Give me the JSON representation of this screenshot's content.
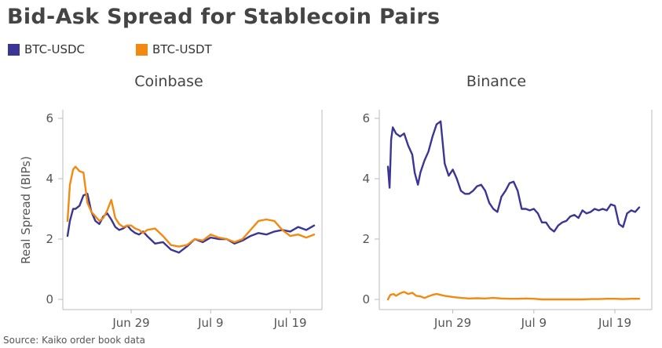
{
  "title": "Bid-Ask Spread for Stablecoin Pairs",
  "source": "Source: Kaiko order book data",
  "colors": {
    "usdc": "#3b3593",
    "usdt": "#f28a12",
    "axis": "#bbbbbb",
    "tick": "#555555"
  },
  "legend": [
    {
      "name": "BTC-USDC",
      "color": "#3b3593"
    },
    {
      "name": "BTC-USDT",
      "color": "#f28a12"
    }
  ],
  "chart_data": [
    {
      "type": "line",
      "title": "Coinbase",
      "ylabel": "Real Spread (BIPs)",
      "ylim": [
        0,
        6
      ],
      "yticks": [
        "0",
        "2",
        "4",
        "6"
      ],
      "xlim": [
        0,
        32
      ],
      "xticks": [
        {
          "x": 8,
          "label": "Jun 29"
        },
        {
          "x": 18,
          "label": "Jul 9"
        },
        {
          "x": 28,
          "label": "Jul 19"
        }
      ],
      "series": [
        {
          "name": "BTC-USDC",
          "color": "#3b3593",
          "x": [
            0,
            0.3,
            0.7,
            1,
            1.5,
            2,
            2.5,
            3,
            3.5,
            4,
            4.5,
            5,
            5.5,
            6,
            6.5,
            7,
            7.5,
            8,
            8.5,
            9,
            9.5,
            10,
            11,
            12,
            13,
            14,
            15,
            16,
            17,
            18,
            19,
            20,
            21,
            22,
            23,
            24,
            25,
            26,
            27,
            28,
            29,
            30,
            31
          ],
          "y": [
            2.1,
            2.6,
            3.0,
            3.0,
            3.1,
            3.45,
            3.5,
            2.9,
            2.6,
            2.5,
            2.75,
            2.85,
            2.65,
            2.4,
            2.3,
            2.35,
            2.45,
            2.3,
            2.2,
            2.15,
            2.25,
            2.1,
            1.85,
            1.9,
            1.65,
            1.55,
            1.75,
            2.0,
            1.9,
            2.05,
            2.0,
            2.0,
            1.85,
            1.95,
            2.1,
            2.2,
            2.15,
            2.25,
            2.3,
            2.25,
            2.4,
            2.3,
            2.45
          ]
        },
        {
          "name": "BTC-USDT",
          "color": "#f28a12",
          "x": [
            0,
            0.3,
            0.7,
            1,
            1.5,
            2,
            2.5,
            3,
            3.5,
            4,
            4.5,
            5,
            5.5,
            6,
            6.5,
            7,
            7.5,
            8,
            8.5,
            9,
            9.5,
            10,
            11,
            12,
            13,
            14,
            15,
            16,
            17,
            18,
            19,
            20,
            21,
            22,
            23,
            24,
            25,
            26,
            27,
            28,
            29,
            30,
            31
          ],
          "y": [
            2.6,
            3.8,
            4.3,
            4.4,
            4.25,
            4.2,
            3.2,
            2.9,
            2.75,
            2.6,
            2.7,
            2.95,
            3.3,
            2.7,
            2.5,
            2.4,
            2.45,
            2.45,
            2.35,
            2.3,
            2.2,
            2.3,
            2.35,
            2.1,
            1.8,
            1.75,
            1.8,
            2.0,
            1.95,
            2.15,
            2.05,
            2.0,
            1.9,
            2.0,
            2.3,
            2.6,
            2.65,
            2.6,
            2.3,
            2.1,
            2.15,
            2.05,
            2.15
          ]
        }
      ]
    },
    {
      "type": "line",
      "title": "Binance",
      "ylabel": "",
      "ylim": [
        0,
        6
      ],
      "yticks": [
        "0",
        "2",
        "4",
        "6"
      ],
      "xlim": [
        0,
        32
      ],
      "xticks": [
        {
          "x": 8,
          "label": "Jun 29"
        },
        {
          "x": 18,
          "label": "Jul 9"
        },
        {
          "x": 28,
          "label": "Jul 19"
        }
      ],
      "series": [
        {
          "name": "BTC-USDC",
          "color": "#3b3593",
          "x": [
            0,
            0.2,
            0.4,
            0.6,
            1,
            1.5,
            2,
            2.5,
            3,
            3.3,
            3.7,
            4,
            4.5,
            5,
            5.5,
            6,
            6.5,
            7,
            7.5,
            8,
            8.5,
            9,
            9.5,
            10,
            10.5,
            11,
            11.5,
            12,
            12.5,
            13,
            13.5,
            14,
            14.5,
            15,
            15.5,
            16,
            16.5,
            17,
            17.5,
            18,
            18.5,
            19,
            19.5,
            20,
            20.5,
            21,
            21.5,
            22,
            22.5,
            23,
            23.5,
            24,
            24.5,
            25,
            25.5,
            26,
            26.5,
            27,
            27.5,
            28,
            28.5,
            29,
            29.5,
            30,
            30.5,
            31
          ],
          "y": [
            4.4,
            3.7,
            5.3,
            5.7,
            5.5,
            5.4,
            5.5,
            5.1,
            4.8,
            4.2,
            3.8,
            4.2,
            4.6,
            4.9,
            5.4,
            5.8,
            5.9,
            4.5,
            4.1,
            4.3,
            4.0,
            3.6,
            3.5,
            3.5,
            3.6,
            3.75,
            3.8,
            3.6,
            3.2,
            3.0,
            2.9,
            3.4,
            3.6,
            3.85,
            3.9,
            3.6,
            3.0,
            3.0,
            2.95,
            3.0,
            2.85,
            2.55,
            2.55,
            2.35,
            2.25,
            2.45,
            2.55,
            2.6,
            2.75,
            2.8,
            2.7,
            2.95,
            2.85,
            2.9,
            3.0,
            2.95,
            3.0,
            2.95,
            3.15,
            3.1,
            2.5,
            2.4,
            2.85,
            2.95,
            2.9,
            3.05
          ]
        },
        {
          "name": "BTC-USDT",
          "color": "#f28a12",
          "x": [
            0,
            0.3,
            0.7,
            1,
            1.5,
            2,
            2.5,
            3,
            3.5,
            4,
            4.5,
            5,
            5.5,
            6,
            7,
            8,
            9,
            10,
            11,
            12,
            13,
            14,
            15,
            16,
            17,
            18,
            19,
            20,
            21,
            22,
            23,
            24,
            25,
            26,
            27,
            28,
            29,
            30,
            31
          ],
          "y": [
            0.0,
            0.15,
            0.18,
            0.12,
            0.2,
            0.25,
            0.18,
            0.22,
            0.12,
            0.1,
            0.05,
            0.1,
            0.15,
            0.18,
            0.12,
            0.08,
            0.05,
            0.03,
            0.04,
            0.03,
            0.05,
            0.03,
            0.02,
            0.02,
            0.03,
            0.02,
            0.0,
            0.0,
            0.0,
            0.0,
            0.0,
            0.0,
            0.01,
            0.01,
            0.02,
            0.02,
            0.01,
            0.02,
            0.02
          ]
        }
      ]
    }
  ]
}
